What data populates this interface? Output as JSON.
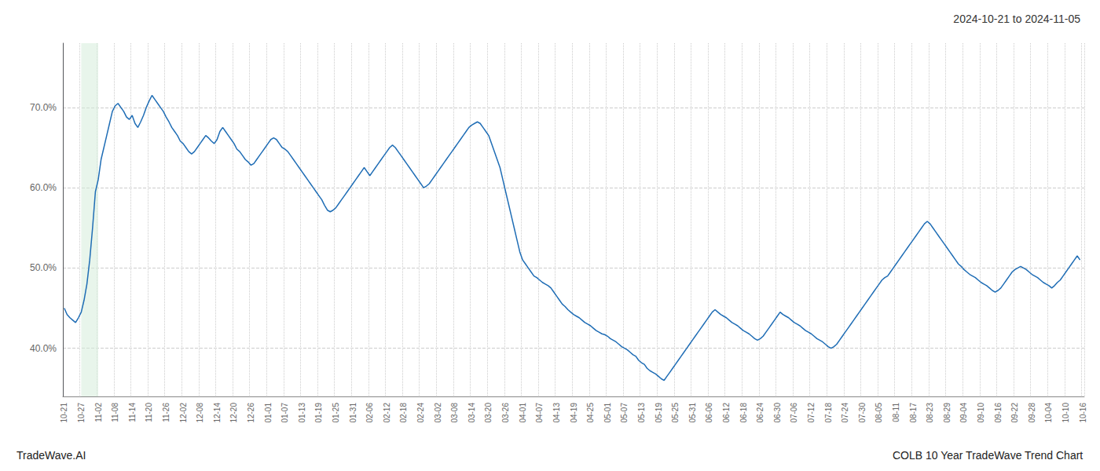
{
  "chart_data": {
    "type": "line",
    "title": "2024-10-21 to 2024-11-05",
    "footer_left": "TradeWave.AI",
    "footer_right": "COLB 10 Year TradeWave Trend Chart",
    "color": "#1f6db5",
    "highlight": {
      "from": "10-27",
      "to": "11-02",
      "color": "#d6edda"
    },
    "ylim": [
      34,
      78
    ],
    "yticks": [
      {
        "value": 40.0,
        "label": "40.0%"
      },
      {
        "value": 50.0,
        "label": "50.0%"
      },
      {
        "value": 60.0,
        "label": "60.0%"
      },
      {
        "value": 70.0,
        "label": "70.0%"
      }
    ],
    "grid": true,
    "categories": [
      "10-21",
      null,
      null,
      null,
      null,
      null,
      "10-27",
      null,
      null,
      null,
      null,
      null,
      "11-02",
      null,
      null,
      null,
      null,
      null,
      "11-08",
      null,
      null,
      null,
      null,
      null,
      "11-14",
      null,
      null,
      null,
      null,
      null,
      "11-20",
      null,
      null,
      null,
      null,
      null,
      "11-26",
      null,
      null,
      null,
      null,
      null,
      "12-02",
      null,
      null,
      null,
      null,
      null,
      "12-08",
      null,
      null,
      null,
      null,
      null,
      "12-14",
      null,
      null,
      null,
      null,
      null,
      "12-20",
      null,
      null,
      null,
      null,
      null,
      "12-26",
      null,
      null,
      null,
      null,
      null,
      "01-01",
      null,
      null,
      null,
      null,
      null,
      "01-07",
      null,
      null,
      null,
      null,
      null,
      "01-13",
      null,
      null,
      null,
      null,
      null,
      "01-19",
      null,
      null,
      null,
      null,
      null,
      "01-25",
      null,
      null,
      null,
      null,
      null,
      "01-31",
      null,
      null,
      null,
      null,
      null,
      "02-06",
      null,
      null,
      null,
      null,
      null,
      "02-12",
      null,
      null,
      null,
      null,
      null,
      "02-18",
      null,
      null,
      null,
      null,
      null,
      "02-24",
      null,
      null,
      null,
      null,
      null,
      "03-02",
      null,
      null,
      null,
      null,
      null,
      "03-08",
      null,
      null,
      null,
      null,
      null,
      "03-14",
      null,
      null,
      null,
      null,
      null,
      "03-20",
      null,
      null,
      null,
      null,
      null,
      "03-26",
      null,
      null,
      null,
      null,
      null,
      "04-01",
      null,
      null,
      null,
      null,
      null,
      "04-07",
      null,
      null,
      null,
      null,
      null,
      "04-13",
      null,
      null,
      null,
      null,
      null,
      "04-19",
      null,
      null,
      null,
      null,
      null,
      "04-25",
      null,
      null,
      null,
      null,
      null,
      "05-01",
      null,
      null,
      null,
      null,
      null,
      "05-07",
      null,
      null,
      null,
      null,
      null,
      "05-13",
      null,
      null,
      null,
      null,
      null,
      "05-19",
      null,
      null,
      null,
      null,
      null,
      "05-25",
      null,
      null,
      null,
      null,
      null,
      "05-31",
      null,
      null,
      null,
      null,
      null,
      "06-06",
      null,
      null,
      null,
      null,
      null,
      "06-12",
      null,
      null,
      null,
      null,
      null,
      "06-18",
      null,
      null,
      null,
      null,
      null,
      "06-24",
      null,
      null,
      null,
      null,
      null,
      "06-30",
      null,
      null,
      null,
      null,
      null,
      "07-06",
      null,
      null,
      null,
      null,
      null,
      "07-12",
      null,
      null,
      null,
      null,
      null,
      "07-18",
      null,
      null,
      null,
      null,
      null,
      "07-24",
      null,
      null,
      null,
      null,
      null,
      "07-30",
      null,
      null,
      null,
      null,
      null,
      "08-05",
      null,
      null,
      null,
      null,
      null,
      "08-11",
      null,
      null,
      null,
      null,
      null,
      "08-17",
      null,
      null,
      null,
      null,
      null,
      "08-23",
      null,
      null,
      null,
      null,
      null,
      "08-29",
      null,
      null,
      null,
      null,
      null,
      "09-04",
      null,
      null,
      null,
      null,
      null,
      "09-10",
      null,
      null,
      null,
      null,
      null,
      "09-16",
      null,
      null,
      null,
      null,
      null,
      "09-22",
      null,
      null,
      null,
      null,
      null,
      "09-28",
      null,
      null,
      null,
      null,
      null,
      "10-04",
      null,
      null,
      null,
      null,
      null,
      "10-10",
      null,
      null,
      null,
      null,
      null,
      "10-16"
    ],
    "values": [
      45.0,
      44.2,
      43.8,
      43.5,
      43.2,
      43.8,
      44.5,
      46.0,
      48.0,
      51.0,
      55.0,
      59.5,
      61.0,
      63.5,
      65.0,
      66.5,
      68.0,
      69.5,
      70.2,
      70.5,
      70.0,
      69.5,
      68.8,
      68.5,
      69.0,
      68.0,
      67.5,
      68.2,
      69.0,
      70.0,
      70.8,
      71.5,
      71.0,
      70.5,
      70.0,
      69.5,
      68.8,
      68.2,
      67.5,
      67.0,
      66.5,
      65.8,
      65.5,
      65.0,
      64.5,
      64.2,
      64.5,
      65.0,
      65.5,
      66.0,
      66.5,
      66.2,
      65.8,
      65.5,
      66.0,
      67.0,
      67.5,
      67.0,
      66.5,
      66.0,
      65.5,
      64.8,
      64.5,
      64.0,
      63.5,
      63.2,
      62.8,
      63.0,
      63.5,
      64.0,
      64.5,
      65.0,
      65.5,
      66.0,
      66.2,
      66.0,
      65.5,
      65.0,
      64.8,
      64.5,
      64.0,
      63.5,
      63.0,
      62.5,
      62.0,
      61.5,
      61.0,
      60.5,
      60.0,
      59.5,
      59.0,
      58.5,
      57.8,
      57.2,
      57.0,
      57.2,
      57.5,
      58.0,
      58.5,
      59.0,
      59.5,
      60.0,
      60.5,
      61.0,
      61.5,
      62.0,
      62.5,
      62.0,
      61.5,
      62.0,
      62.5,
      63.0,
      63.5,
      64.0,
      64.5,
      65.0,
      65.3,
      65.0,
      64.5,
      64.0,
      63.5,
      63.0,
      62.5,
      62.0,
      61.5,
      61.0,
      60.5,
      60.0,
      60.2,
      60.5,
      61.0,
      61.5,
      62.0,
      62.5,
      63.0,
      63.5,
      64.0,
      64.5,
      65.0,
      65.5,
      66.0,
      66.5,
      67.0,
      67.5,
      67.8,
      68.0,
      68.2,
      68.0,
      67.5,
      67.0,
      66.5,
      65.5,
      64.5,
      63.5,
      62.5,
      61.0,
      59.5,
      58.0,
      56.5,
      55.0,
      53.5,
      52.0,
      51.0,
      50.5,
      50.0,
      49.5,
      49.0,
      48.8,
      48.5,
      48.2,
      48.0,
      47.8,
      47.5,
      47.0,
      46.5,
      46.0,
      45.5,
      45.2,
      44.8,
      44.5,
      44.2,
      44.0,
      43.8,
      43.5,
      43.2,
      43.0,
      42.8,
      42.5,
      42.2,
      42.0,
      41.8,
      41.7,
      41.5,
      41.2,
      41.0,
      40.8,
      40.5,
      40.2,
      40.0,
      39.8,
      39.5,
      39.2,
      39.0,
      38.5,
      38.2,
      38.0,
      37.5,
      37.2,
      37.0,
      36.8,
      36.5,
      36.2,
      36.0,
      36.5,
      37.0,
      37.5,
      38.0,
      38.5,
      39.0,
      39.5,
      40.0,
      40.5,
      41.0,
      41.5,
      42.0,
      42.5,
      43.0,
      43.5,
      44.0,
      44.5,
      44.8,
      44.5,
      44.2,
      44.0,
      43.8,
      43.5,
      43.2,
      43.0,
      42.8,
      42.5,
      42.2,
      42.0,
      41.8,
      41.5,
      41.2,
      41.0,
      41.2,
      41.5,
      42.0,
      42.5,
      43.0,
      43.5,
      44.0,
      44.5,
      44.2,
      44.0,
      43.8,
      43.5,
      43.2,
      43.0,
      42.8,
      42.5,
      42.2,
      42.0,
      41.8,
      41.5,
      41.2,
      41.0,
      40.8,
      40.5,
      40.2,
      40.0,
      40.2,
      40.5,
      41.0,
      41.5,
      42.0,
      42.5,
      43.0,
      43.5,
      44.0,
      44.5,
      45.0,
      45.5,
      46.0,
      46.5,
      47.0,
      47.5,
      48.0,
      48.5,
      48.8,
      49.0,
      49.5,
      50.0,
      50.5,
      51.0,
      51.5,
      52.0,
      52.5,
      53.0,
      53.5,
      54.0,
      54.5,
      55.0,
      55.5,
      55.8,
      55.5,
      55.0,
      54.5,
      54.0,
      53.5,
      53.0,
      52.5,
      52.0,
      51.5,
      51.0,
      50.5,
      50.2,
      49.8,
      49.5,
      49.2,
      49.0,
      48.8,
      48.5,
      48.2,
      48.0,
      47.8,
      47.5,
      47.2,
      47.0,
      47.2,
      47.5,
      48.0,
      48.5,
      49.0,
      49.5,
      49.8,
      50.0,
      50.2,
      50.0,
      49.8,
      49.5,
      49.2,
      49.0,
      48.8,
      48.5,
      48.2,
      48.0,
      47.8,
      47.5,
      47.8,
      48.2,
      48.5,
      49.0,
      49.5,
      50.0,
      50.5,
      51.0,
      51.5,
      51.0,
      null
    ]
  }
}
